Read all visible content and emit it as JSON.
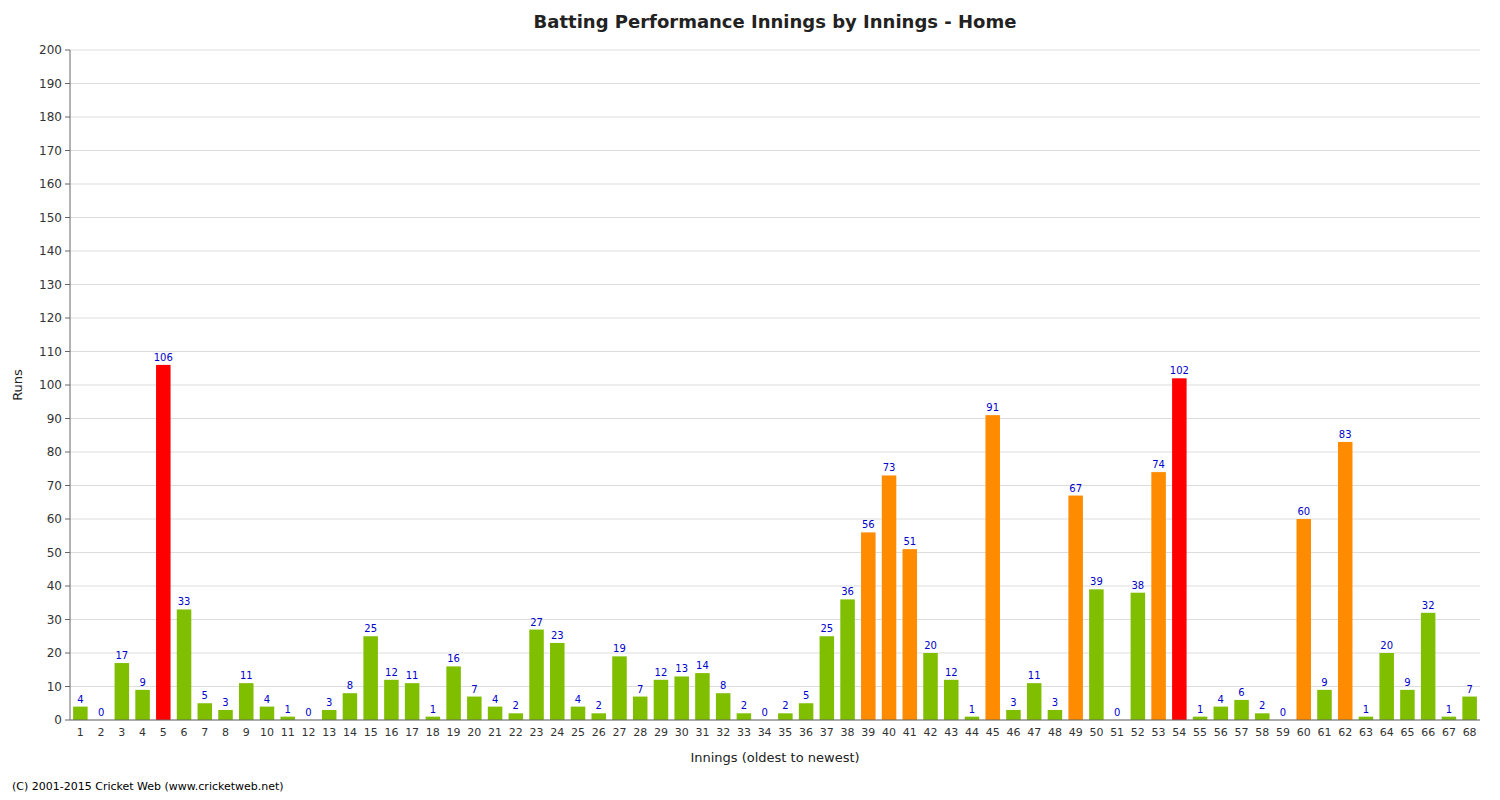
{
  "chart_data": {
    "type": "bar",
    "title": "Batting Performance Innings by Innings - Home",
    "x_label": "Innings (oldest to newest)",
    "y_label": "Runs",
    "annotations": [
      "(C) 2001-2015 Cricket Web (www.cricketweb.net)"
    ],
    "categories": [
      "1",
      "2",
      "3",
      "4",
      "5",
      "6",
      "7",
      "8",
      "9",
      "10",
      "11",
      "12",
      "13",
      "14",
      "15",
      "16",
      "17",
      "18",
      "19",
      "20",
      "21",
      "22",
      "23",
      "24",
      "25",
      "26",
      "27",
      "28",
      "29",
      "30",
      "31",
      "32",
      "33",
      "34",
      "35",
      "36",
      "37",
      "38",
      "39",
      "40",
      "41",
      "42",
      "43",
      "44",
      "45",
      "46",
      "47",
      "48",
      "49",
      "50",
      "51",
      "52",
      "53",
      "54",
      "55",
      "56",
      "57",
      "58",
      "59",
      "60",
      "61",
      "62",
      "63",
      "64",
      "65",
      "66",
      "67",
      "68"
    ],
    "values": [
      4,
      0,
      17,
      9,
      106,
      33,
      5,
      3,
      11,
      4,
      1,
      0,
      3,
      8,
      25,
      12,
      11,
      1,
      16,
      7,
      4,
      2,
      27,
      23,
      4,
      2,
      19,
      7,
      12,
      13,
      14,
      8,
      2,
      0,
      2,
      5,
      25,
      36,
      56,
      73,
      51,
      20,
      12,
      1,
      91,
      3,
      11,
      3,
      67,
      39,
      0,
      38,
      74,
      102,
      1,
      4,
      6,
      2,
      0,
      60,
      9,
      83,
      1,
      20,
      9,
      32,
      1,
      7
    ],
    "colors": [
      "#7FBF00",
      "#7FBF00",
      "#7FBF00",
      "#7FBF00",
      "#FF0000",
      "#7FBF00",
      "#7FBF00",
      "#7FBF00",
      "#7FBF00",
      "#7FBF00",
      "#7FBF00",
      "#7FBF00",
      "#7FBF00",
      "#7FBF00",
      "#7FBF00",
      "#7FBF00",
      "#7FBF00",
      "#7FBF00",
      "#7FBF00",
      "#7FBF00",
      "#7FBF00",
      "#7FBF00",
      "#7FBF00",
      "#7FBF00",
      "#7FBF00",
      "#7FBF00",
      "#7FBF00",
      "#7FBF00",
      "#7FBF00",
      "#7FBF00",
      "#7FBF00",
      "#7FBF00",
      "#7FBF00",
      "#7FBF00",
      "#7FBF00",
      "#7FBF00",
      "#7FBF00",
      "#7FBF00",
      "#FF8C00",
      "#FF8C00",
      "#FF8C00",
      "#7FBF00",
      "#7FBF00",
      "#7FBF00",
      "#FF8C00",
      "#7FBF00",
      "#7FBF00",
      "#7FBF00",
      "#FF8C00",
      "#7FBF00",
      "#7FBF00",
      "#7FBF00",
      "#FF8C00",
      "#FF0000",
      "#7FBF00",
      "#7FBF00",
      "#7FBF00",
      "#7FBF00",
      "#7FBF00",
      "#FF8C00",
      "#7FBF00",
      "#FF8C00",
      "#7FBF00",
      "#7FBF00",
      "#7FBF00",
      "#7FBF00",
      "#7FBF00",
      "#7FBF00"
    ],
    "ylim": [
      0,
      200
    ],
    "yticks": [
      0,
      10,
      20,
      30,
      40,
      50,
      60,
      70,
      80,
      90,
      100,
      110,
      120,
      130,
      140,
      150,
      160,
      170,
      180,
      190,
      200
    ],
    "grid": true,
    "data_labels": true
  }
}
